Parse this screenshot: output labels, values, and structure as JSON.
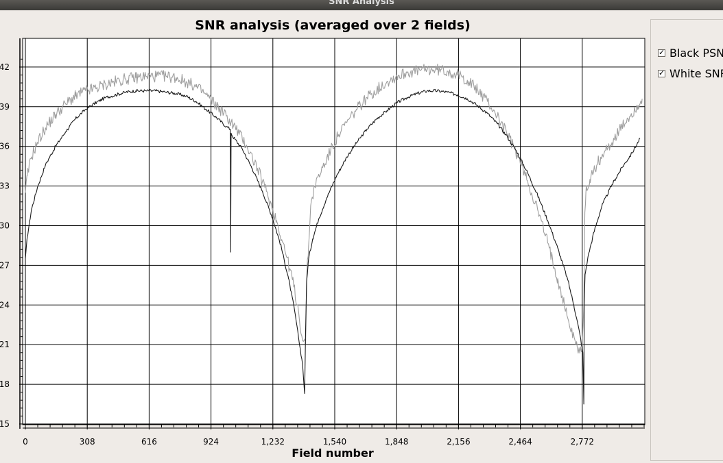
{
  "window": {
    "title": "SNR Analysis"
  },
  "legend": {
    "items": [
      {
        "label": "Black PSNR",
        "checked": true,
        "color": "#1a1a1a"
      },
      {
        "label": "White SNR",
        "checked": true,
        "color": "#9e9e9e"
      }
    ]
  },
  "chart_data": {
    "type": "line",
    "title": "SNR analysis (averaged over 2 fields)",
    "xlabel": "Field number",
    "ylabel": "",
    "xlim": [
      0,
      3080
    ],
    "ylim": [
      15,
      43
    ],
    "x_ticks": [
      "0",
      "308",
      "616",
      "924",
      "1,232",
      "1,540",
      "1,848",
      "2,156",
      "2,464",
      "2,772"
    ],
    "y_ticks": [
      "15",
      "18",
      "21",
      "24",
      "27",
      "30",
      "33",
      "36",
      "39",
      "42"
    ],
    "grid": true,
    "series": [
      {
        "name": "Black PSNR",
        "color": "#1a1a1a",
        "x": [
          0,
          10,
          30,
          60,
          100,
          150,
          200,
          250,
          300,
          350,
          400,
          450,
          500,
          550,
          600,
          650,
          700,
          750,
          800,
          850,
          900,
          950,
          1000,
          1020,
          1022,
          1024,
          1030,
          1080,
          1130,
          1180,
          1230,
          1270,
          1310,
          1340,
          1360,
          1380,
          1390,
          1395,
          1400,
          1410,
          1430,
          1460,
          1500,
          1550,
          1600,
          1650,
          1700,
          1750,
          1800,
          1850,
          1900,
          1950,
          2000,
          2050,
          2100,
          2150,
          2200,
          2250,
          2300,
          2350,
          2400,
          2450,
          2500,
          2550,
          2600,
          2650,
          2700,
          2730,
          2760,
          2775,
          2780,
          2782,
          2786,
          2800,
          2830,
          2870,
          2920,
          2970,
          3020,
          3060
        ],
        "y": [
          27.5,
          29.2,
          31.2,
          32.9,
          34.6,
          36.0,
          37.1,
          38.1,
          38.8,
          39.3,
          39.7,
          39.9,
          40.1,
          40.2,
          40.2,
          40.2,
          40.1,
          40.0,
          39.8,
          39.4,
          38.8,
          38.2,
          37.5,
          37.3,
          28.0,
          37.0,
          36.8,
          35.8,
          34.3,
          32.6,
          30.6,
          28.6,
          26.0,
          23.6,
          21.5,
          19.5,
          17.3,
          22.0,
          25.8,
          27.5,
          29.0,
          30.5,
          32.1,
          33.8,
          35.2,
          36.3,
          37.3,
          38.1,
          38.7,
          39.3,
          39.7,
          40.0,
          40.2,
          40.2,
          40.1,
          39.9,
          39.6,
          39.1,
          38.5,
          37.7,
          36.7,
          35.5,
          34.0,
          32.3,
          30.4,
          28.3,
          25.9,
          24.0,
          21.8,
          20.4,
          16.5,
          24.0,
          26.3,
          27.6,
          29.5,
          31.5,
          33.1,
          34.4,
          35.5,
          36.6
        ]
      },
      {
        "name": "White SNR",
        "color": "#9e9e9e",
        "x": [
          0,
          10,
          30,
          60,
          100,
          150,
          200,
          250,
          300,
          350,
          400,
          450,
          500,
          550,
          600,
          650,
          700,
          750,
          800,
          850,
          900,
          950,
          1000,
          1050,
          1100,
          1150,
          1200,
          1250,
          1290,
          1330,
          1360,
          1380,
          1395,
          1400,
          1410,
          1420,
          1440,
          1480,
          1520,
          1560,
          1600,
          1650,
          1700,
          1750,
          1800,
          1850,
          1900,
          1950,
          2000,
          2050,
          2100,
          2150,
          2200,
          2250,
          2300,
          2350,
          2400,
          2450,
          2500,
          2550,
          2600,
          2650,
          2700,
          2740,
          2770,
          2780,
          2785,
          2790,
          2810,
          2850,
          2900,
          2950,
          3000,
          3050,
          3070
        ],
        "y": [
          32.5,
          33.8,
          35.2,
          36.3,
          37.4,
          38.4,
          39.2,
          39.8,
          40.2,
          40.4,
          40.7,
          40.9,
          41.1,
          41.2,
          41.3,
          41.3,
          41.3,
          41.2,
          40.9,
          40.5,
          39.9,
          39.1,
          38.3,
          37.3,
          36.1,
          34.5,
          32.6,
          30.4,
          28.3,
          25.9,
          23.5,
          21.3,
          21.0,
          26.0,
          28.5,
          31.5,
          33.0,
          34.4,
          35.7,
          36.9,
          37.8,
          38.8,
          39.7,
          40.3,
          40.9,
          41.3,
          41.6,
          41.7,
          41.8,
          41.8,
          41.7,
          41.4,
          41.0,
          40.3,
          39.4,
          38.3,
          36.9,
          35.3,
          33.4,
          31.2,
          28.7,
          26.0,
          23.0,
          21.0,
          20.5,
          24.0,
          31.0,
          32.5,
          33.5,
          34.8,
          35.9,
          37.0,
          38.1,
          39.1,
          39.6
        ]
      }
    ]
  }
}
